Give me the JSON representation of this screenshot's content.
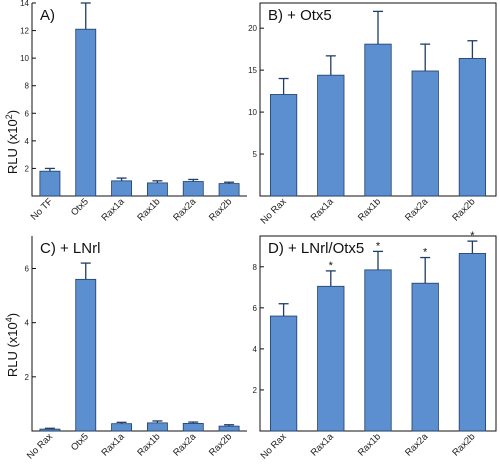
{
  "ylabels": {
    "top": {
      "text": "RLU (x10",
      "sup": "2",
      "close": ")"
    },
    "bottom": {
      "text": "RLU (x10",
      "sup": "4",
      "close": ")"
    }
  },
  "colors": {
    "bar": "#5b8fd0",
    "edge": "#1f3d66"
  },
  "chart_data": [
    {
      "id": "A",
      "type": "bar",
      "title": "A)",
      "categories": [
        "No TF",
        "Otx5",
        "Rax1a",
        "Rax1b",
        "Rax2a",
        "Rax2b"
      ],
      "values": [
        1.8,
        12.1,
        1.1,
        0.95,
        1.05,
        0.9
      ],
      "errors": [
        0.2,
        1.9,
        0.2,
        0.15,
        0.15,
        0.1
      ],
      "stars": [
        false,
        false,
        false,
        false,
        false,
        false
      ],
      "ylim": [
        0,
        14
      ],
      "yticks": [
        2,
        4,
        6,
        8,
        10,
        12,
        14
      ],
      "ytick_labels": [
        "2",
        "4",
        "6",
        "8",
        "10",
        "12",
        "14"
      ],
      "xlabel": "",
      "ylabel": "RLU (x10²)"
    },
    {
      "id": "B",
      "type": "bar",
      "title": "B) + Otx5",
      "categories": [
        "No Rax",
        "Rax1a",
        "Rax1b",
        "Rax2a",
        "Rax2b"
      ],
      "values": [
        12.1,
        14.4,
        18.1,
        14.9,
        16.4
      ],
      "errors": [
        1.9,
        2.3,
        3.9,
        3.2,
        2.1
      ],
      "stars": [
        false,
        false,
        false,
        false,
        false
      ],
      "ylim": [
        0,
        23
      ],
      "yticks": [
        5,
        10,
        15,
        20
      ],
      "ytick_labels": [
        "5",
        "10",
        "15",
        "20"
      ],
      "xlabel": "",
      "ylabel": ""
    },
    {
      "id": "C",
      "type": "bar",
      "title": "C) + LNrl",
      "categories": [
        "No Rax",
        "Otx5",
        "Rax1a",
        "Rax1b",
        "Rax2a",
        "Rax2b"
      ],
      "values": [
        0.07,
        5.6,
        0.27,
        0.3,
        0.28,
        0.18
      ],
      "errors": [
        0.03,
        0.6,
        0.05,
        0.07,
        0.05,
        0.05
      ],
      "stars": [
        false,
        false,
        false,
        false,
        false,
        false
      ],
      "ylim": [
        0,
        7.2
      ],
      "yticks": [
        2,
        4,
        6
      ],
      "ytick_labels": [
        "2",
        "4",
        "6"
      ],
      "xlabel": "",
      "ylabel": "RLU (x10⁴)"
    },
    {
      "id": "D",
      "type": "bar",
      "title": "D) + LNrl/Otx5",
      "categories": [
        "No Rax",
        "Rax1a",
        "Rax1b",
        "Rax2a",
        "Rax2b"
      ],
      "values": [
        5.6,
        7.05,
        7.85,
        7.2,
        8.65
      ],
      "errors": [
        0.6,
        0.75,
        0.9,
        1.25,
        0.6
      ],
      "stars": [
        false,
        true,
        true,
        true,
        true
      ],
      "star_label": "*",
      "ylim": [
        0,
        9.5
      ],
      "yticks": [
        2,
        4,
        6,
        8
      ],
      "ytick_labels": [
        "2",
        "4",
        "6",
        "8"
      ],
      "xlabel": "",
      "ylabel": ""
    }
  ]
}
